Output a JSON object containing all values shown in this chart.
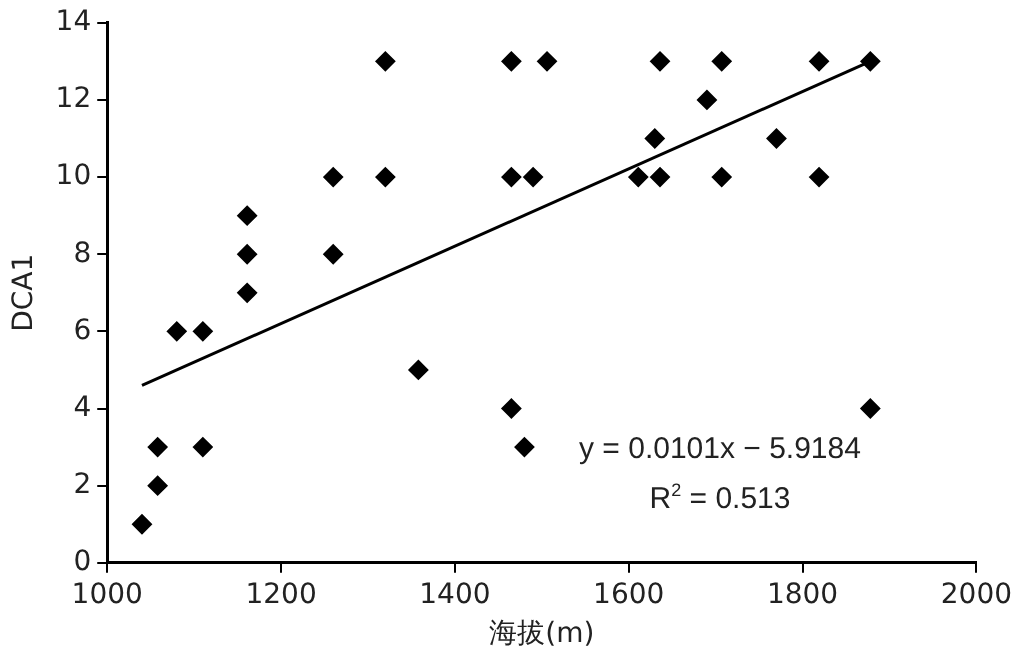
{
  "chart_data": {
    "type": "scatter",
    "xlabel": "海拔(m)",
    "ylabel": "DCA1",
    "xlim": [
      1000,
      2000
    ],
    "xticks": [
      1000,
      1200,
      1400,
      1600,
      1800,
      2000
    ],
    "ylim": [
      0,
      14
    ],
    "yticks": [
      0,
      2,
      4,
      6,
      8,
      10,
      12,
      14
    ],
    "grid": false,
    "legend": false,
    "annotations": [
      "y = 0.0101x − 5.9184",
      "R$^{2}$ = 0.513"
    ],
    "series": [
      {
        "type": "scatter",
        "color": "#000000",
        "marker": "diamond",
        "x": [
          1040,
          1058,
          1058,
          1080,
          1110,
          1110,
          1161,
          1161,
          1161,
          1260,
          1260,
          1320,
          1320,
          1358,
          1465,
          1465,
          1465,
          1480,
          1490,
          1506,
          1611,
          1630,
          1636,
          1636,
          1690,
          1707,
          1707,
          1770,
          1819,
          1819,
          1878,
          1878
        ],
        "values": [
          1,
          2,
          3,
          6,
          6,
          3,
          9,
          8,
          7,
          10,
          8,
          13,
          10,
          5,
          13,
          10,
          4,
          3,
          10,
          13,
          10,
          11,
          13,
          10,
          12,
          13,
          10,
          11,
          13,
          10,
          13,
          4
        ]
      },
      {
        "type": "line",
        "color": "#000000",
        "marker": "none",
        "x": [
          1040,
          1878
        ],
        "values": [
          4.6,
          13.0
        ]
      }
    ]
  }
}
